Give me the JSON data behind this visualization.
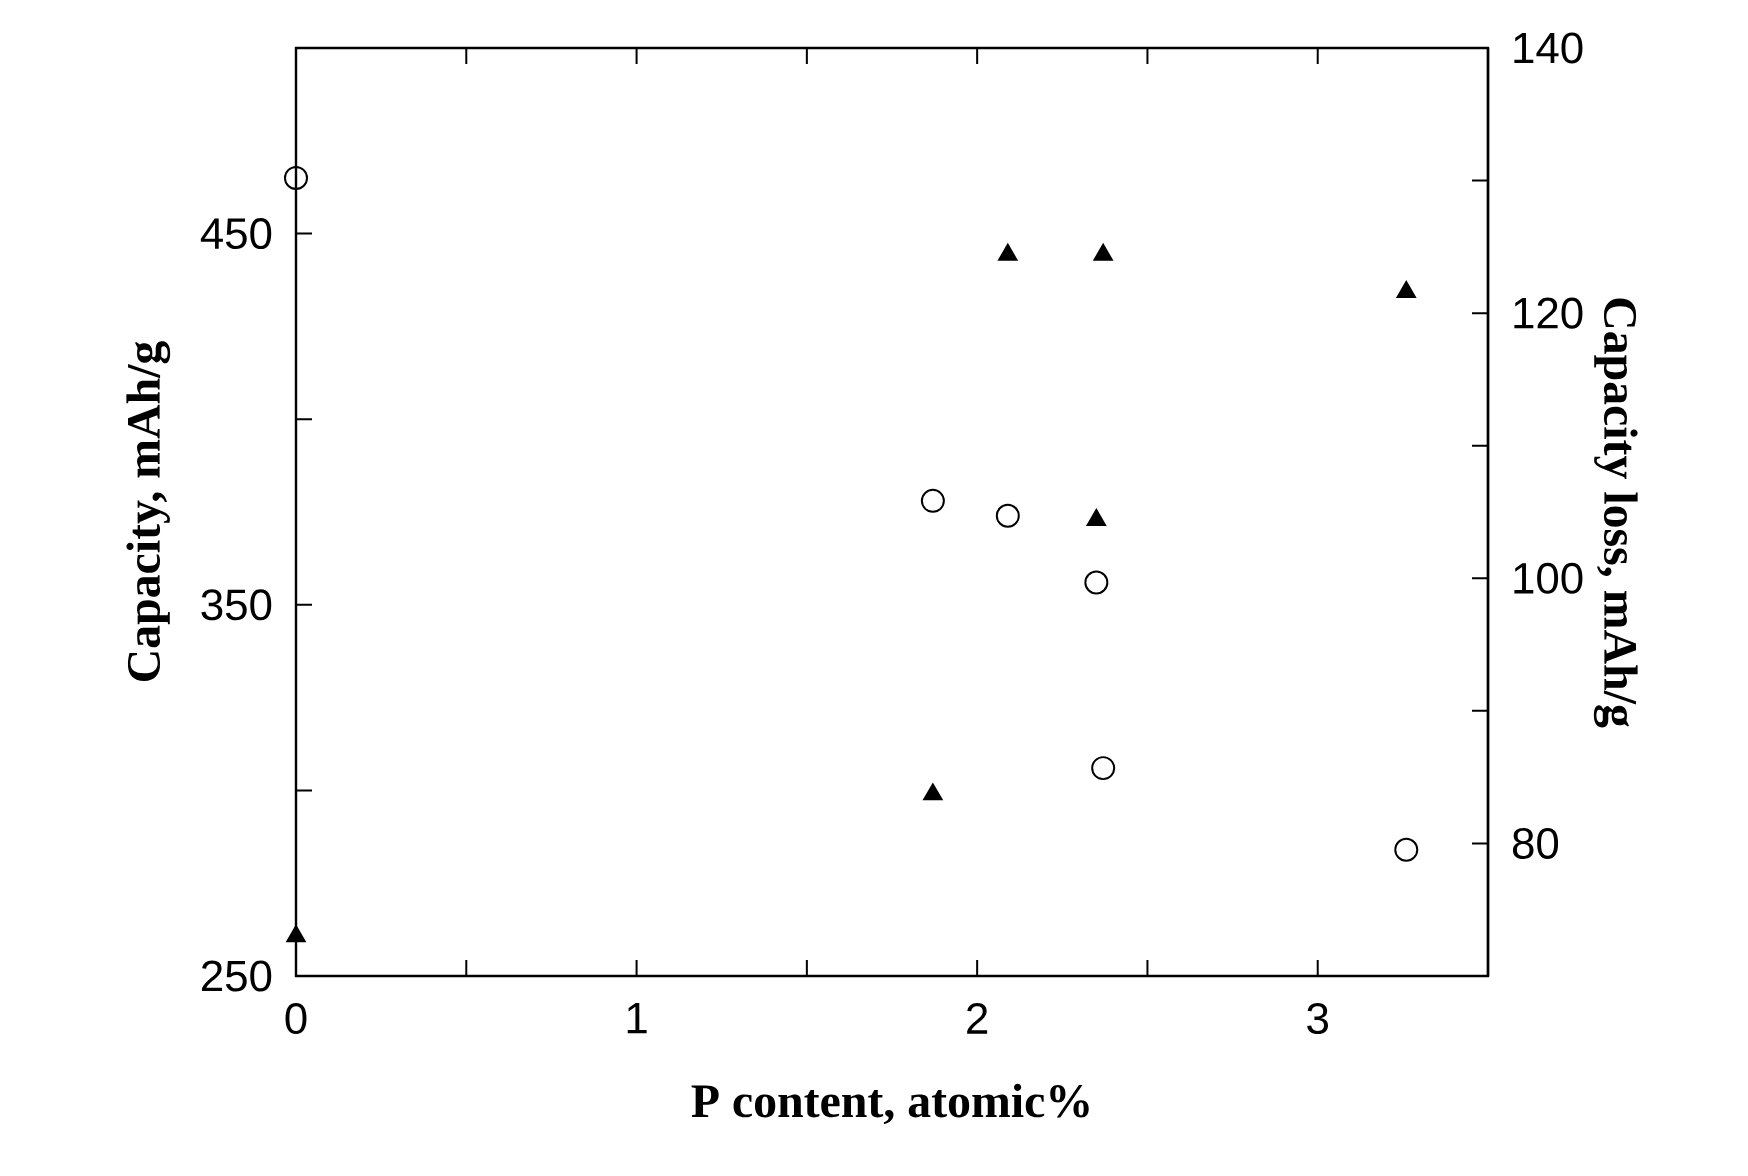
{
  "chart_data": {
    "type": "scatter",
    "xlabel": "P content, atomic%",
    "ylabel": "Capacity, mAh/g",
    "y2label": "Capacity loss, mAh/g",
    "xlim": [
      0,
      3.5
    ],
    "xticks": [
      0,
      {
        "value": 0.5,
        "label": null
      },
      1,
      {
        "value": 1.5,
        "label": null
      },
      2,
      {
        "value": 2.5,
        "label": null
      },
      3,
      {
        "value": 3.5,
        "label": null
      }
    ],
    "ylim": [
      250,
      500
    ],
    "yticks": [
      250,
      {
        "value": 300,
        "label": null
      },
      350,
      {
        "value": 400,
        "label": null
      },
      450,
      {
        "value": 500,
        "label": null
      }
    ],
    "y2lim": [
      70,
      140
    ],
    "y2ticks": [
      {
        "value": 70,
        "label": null
      },
      80,
      {
        "value": 90,
        "label": null
      },
      100,
      {
        "value": 110,
        "label": null
      },
      120,
      {
        "value": 130,
        "label": null
      },
      140
    ],
    "series": [
      {
        "color": "#000000",
        "marker": "circle",
        "x": [
          0,
          1.87,
          2.09,
          2.35,
          2.37,
          3.26
        ],
        "values": [
          465,
          378,
          374,
          356,
          306,
          284
        ]
      },
      {
        "color": "#000000",
        "marker": "triangle",
        "axis": "y2",
        "x": [
          0,
          1.87,
          2.09,
          2.35,
          2.37,
          3.26
        ],
        "values": [
          73,
          83.7,
          124.4,
          104.4,
          124.4,
          121.6
        ]
      }
    ]
  }
}
